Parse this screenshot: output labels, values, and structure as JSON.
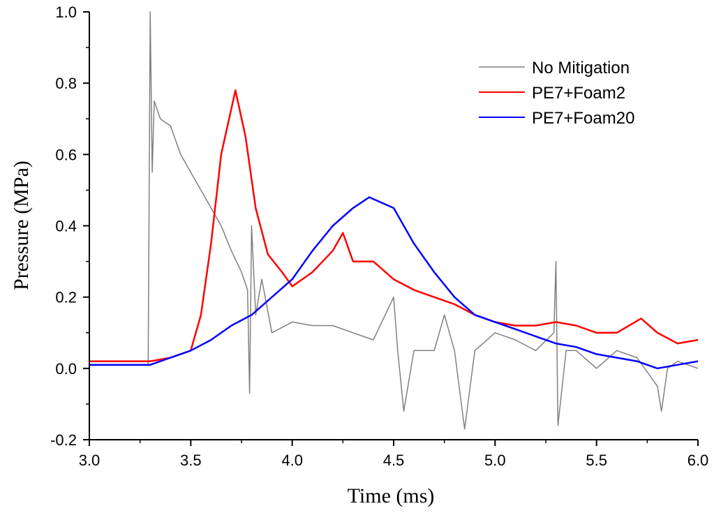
{
  "chart_data": {
    "type": "line",
    "title": "",
    "xlabel": "Time (ms)",
    "ylabel": "Pressure (MPa)",
    "xlim": [
      3.0,
      6.0
    ],
    "ylim": [
      -0.2,
      1.0
    ],
    "xticks": [
      "3.0",
      "3.5",
      "4.0",
      "4.5",
      "5.0",
      "5.5",
      "6.0"
    ],
    "yticks": [
      "-0.2",
      "0.0",
      "0.2",
      "0.4",
      "0.6",
      "0.8",
      "1.0"
    ],
    "grid": false,
    "legend_position": "top-right",
    "series": [
      {
        "name": "No Mitigation",
        "color": "#808080",
        "x": [
          3.0,
          3.1,
          3.2,
          3.29,
          3.3,
          3.31,
          3.32,
          3.35,
          3.4,
          3.45,
          3.5,
          3.55,
          3.6,
          3.65,
          3.7,
          3.75,
          3.78,
          3.79,
          3.8,
          3.82,
          3.85,
          3.9,
          4.0,
          4.1,
          4.2,
          4.3,
          4.4,
          4.5,
          4.52,
          4.55,
          4.6,
          4.7,
          4.75,
          4.8,
          4.85,
          4.9,
          5.0,
          5.1,
          5.2,
          5.29,
          5.3,
          5.31,
          5.35,
          5.4,
          5.5,
          5.6,
          5.7,
          5.8,
          5.82,
          5.85,
          5.9,
          6.0
        ],
        "y": [
          0.01,
          0.01,
          0.01,
          0.01,
          1.0,
          0.55,
          0.75,
          0.7,
          0.68,
          0.6,
          0.55,
          0.5,
          0.45,
          0.4,
          0.33,
          0.27,
          0.22,
          -0.07,
          0.4,
          0.15,
          0.25,
          0.1,
          0.13,
          0.12,
          0.12,
          0.1,
          0.08,
          0.2,
          0.05,
          -0.12,
          0.05,
          0.05,
          0.15,
          0.05,
          -0.17,
          0.05,
          0.1,
          0.08,
          0.05,
          0.1,
          0.3,
          -0.16,
          0.05,
          0.05,
          0.0,
          0.05,
          0.03,
          -0.05,
          -0.12,
          0.0,
          0.02,
          0.0
        ]
      },
      {
        "name": "PE7+Foam2",
        "color": "#ff0000",
        "x": [
          3.0,
          3.1,
          3.2,
          3.3,
          3.4,
          3.5,
          3.55,
          3.6,
          3.65,
          3.72,
          3.77,
          3.82,
          3.88,
          3.95,
          4.0,
          4.1,
          4.2,
          4.25,
          4.3,
          4.4,
          4.5,
          4.6,
          4.7,
          4.8,
          4.9,
          5.0,
          5.1,
          5.2,
          5.3,
          5.4,
          5.5,
          5.6,
          5.72,
          5.8,
          5.9,
          6.0
        ],
        "y": [
          0.02,
          0.02,
          0.02,
          0.02,
          0.03,
          0.05,
          0.15,
          0.35,
          0.6,
          0.78,
          0.65,
          0.45,
          0.32,
          0.27,
          0.23,
          0.27,
          0.33,
          0.38,
          0.3,
          0.3,
          0.25,
          0.22,
          0.2,
          0.18,
          0.15,
          0.13,
          0.12,
          0.12,
          0.13,
          0.12,
          0.1,
          0.1,
          0.14,
          0.1,
          0.07,
          0.08
        ]
      },
      {
        "name": "PE7+Foam20",
        "color": "#0000ff",
        "x": [
          3.0,
          3.1,
          3.2,
          3.3,
          3.4,
          3.5,
          3.6,
          3.7,
          3.8,
          3.9,
          4.0,
          4.1,
          4.2,
          4.3,
          4.38,
          4.5,
          4.6,
          4.7,
          4.8,
          4.9,
          5.0,
          5.1,
          5.2,
          5.3,
          5.4,
          5.5,
          5.6,
          5.7,
          5.8,
          5.9,
          6.0
        ],
        "y": [
          0.01,
          0.01,
          0.01,
          0.01,
          0.03,
          0.05,
          0.08,
          0.12,
          0.15,
          0.2,
          0.25,
          0.33,
          0.4,
          0.45,
          0.48,
          0.45,
          0.35,
          0.27,
          0.2,
          0.15,
          0.13,
          0.11,
          0.09,
          0.07,
          0.06,
          0.04,
          0.03,
          0.02,
          0.0,
          0.01,
          0.02
        ]
      }
    ]
  }
}
